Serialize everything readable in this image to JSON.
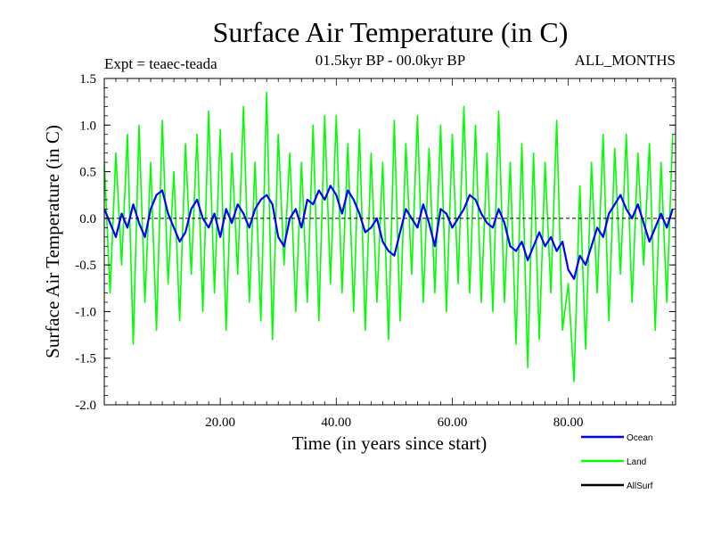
{
  "chart_data": {
    "type": "line",
    "title": "Surface Air Temperature (in C)",
    "subtitle": "01.5kyr BP - 00.0kyr BP",
    "experiment_label": "Expt = teaec-teada",
    "period_label": "ALL_MONTHS",
    "xlabel": "Time (in years since start)",
    "ylabel": "Surface Air Temperature (in C)",
    "xlim": [
      0,
      98.5
    ],
    "ylim": [
      -2.0,
      1.5
    ],
    "x_ticks": [
      20,
      40,
      60,
      80
    ],
    "x_tick_labels": [
      "20.00",
      "40.00",
      "60.00",
      "80.00"
    ],
    "y_ticks": [
      1.5,
      1.0,
      0.5,
      0.0,
      -0.5,
      -1.0,
      -1.5,
      -2.0
    ],
    "y_tick_labels": [
      "1.5",
      "1.0",
      "0.5",
      "0.0",
      "-0.5",
      "-1.0",
      "-1.5",
      "-2.0"
    ],
    "zero_line": true,
    "series": [
      {
        "name": "Ocean",
        "color": "#0000ff",
        "x": [
          0,
          1,
          2,
          3,
          4,
          5,
          6,
          7,
          8,
          9,
          10,
          11,
          12,
          13,
          14,
          15,
          16,
          17,
          18,
          19,
          20,
          21,
          22,
          23,
          24,
          25,
          26,
          27,
          28,
          29,
          30,
          31,
          32,
          33,
          34,
          35,
          36,
          37,
          38,
          39,
          40,
          41,
          42,
          43,
          44,
          45,
          46,
          47,
          48,
          49,
          50,
          51,
          52,
          53,
          54,
          55,
          56,
          57,
          58,
          59,
          60,
          61,
          62,
          63,
          64,
          65,
          66,
          67,
          68,
          69,
          70,
          71,
          72,
          73,
          74,
          75,
          76,
          77,
          78,
          79,
          80,
          81,
          82,
          83,
          84,
          85,
          86,
          87,
          88,
          89,
          90,
          91,
          92,
          93,
          94,
          95,
          96,
          97,
          98
        ],
        "values": [
          0.1,
          -0.05,
          -0.2,
          0.05,
          -0.1,
          0.15,
          -0.05,
          -0.2,
          0.1,
          0.25,
          0.3,
          0.05,
          -0.1,
          -0.25,
          -0.15,
          0.1,
          0.2,
          0.0,
          -0.1,
          0.05,
          -0.2,
          0.1,
          -0.05,
          0.15,
          0.05,
          -0.1,
          0.1,
          0.2,
          0.25,
          0.15,
          -0.2,
          -0.3,
          0.0,
          0.1,
          -0.1,
          0.2,
          0.15,
          0.3,
          0.2,
          0.35,
          0.25,
          0.05,
          0.3,
          0.2,
          0.05,
          -0.15,
          -0.1,
          0.0,
          -0.25,
          -0.35,
          -0.4,
          -0.15,
          0.1,
          0.0,
          -0.1,
          0.15,
          -0.05,
          -0.3,
          0.1,
          0.05,
          -0.1,
          0.0,
          0.1,
          0.25,
          0.2,
          0.05,
          -0.05,
          -0.1,
          0.1,
          -0.05,
          -0.3,
          -0.35,
          -0.25,
          -0.45,
          -0.3,
          -0.15,
          -0.3,
          -0.2,
          -0.35,
          -0.25,
          -0.55,
          -0.65,
          -0.4,
          -0.5,
          -0.3,
          -0.1,
          -0.2,
          0.05,
          0.15,
          0.25,
          0.1,
          0.0,
          0.15,
          -0.05,
          -0.25,
          -0.1,
          0.05,
          -0.1,
          0.1
        ]
      },
      {
        "name": "Land",
        "color": "#00ff00",
        "x": [
          0,
          1,
          2,
          3,
          4,
          5,
          6,
          7,
          8,
          9,
          10,
          11,
          12,
          13,
          14,
          15,
          16,
          17,
          18,
          19,
          20,
          21,
          22,
          23,
          24,
          25,
          26,
          27,
          28,
          29,
          30,
          31,
          32,
          33,
          34,
          35,
          36,
          37,
          38,
          39,
          40,
          41,
          42,
          43,
          44,
          45,
          46,
          47,
          48,
          49,
          50,
          51,
          52,
          53,
          54,
          55,
          56,
          57,
          58,
          59,
          60,
          61,
          62,
          63,
          64,
          65,
          66,
          67,
          68,
          69,
          70,
          71,
          72,
          73,
          74,
          75,
          76,
          77,
          78,
          79,
          80,
          81,
          82,
          83,
          84,
          85,
          86,
          87,
          88,
          89,
          90,
          91,
          92,
          93,
          94,
          95,
          96,
          97,
          98
        ],
        "values": [
          0.6,
          -0.8,
          0.7,
          -0.5,
          0.9,
          -1.35,
          1.0,
          -0.9,
          0.6,
          -1.2,
          1.05,
          -0.7,
          0.5,
          -1.1,
          0.8,
          -0.6,
          0.9,
          -1.0,
          1.15,
          -0.8,
          0.95,
          -1.2,
          0.7,
          -0.6,
          1.2,
          -0.9,
          0.6,
          -1.1,
          1.35,
          -1.3,
          0.9,
          -0.5,
          0.7,
          -1.0,
          0.6,
          -0.9,
          1.0,
          -1.1,
          1.1,
          -0.7,
          1.1,
          -0.8,
          0.8,
          -1.0,
          0.95,
          -1.2,
          0.7,
          -0.9,
          0.6,
          -1.3,
          1.05,
          -1.1,
          0.8,
          -0.6,
          1.1,
          -0.9,
          0.75,
          -0.8,
          1.0,
          -1.0,
          0.9,
          -0.7,
          1.2,
          -0.8,
          1.0,
          -0.9,
          0.7,
          -1.0,
          1.15,
          -0.9,
          0.6,
          -1.35,
          0.8,
          -1.6,
          0.7,
          -1.3,
          0.6,
          -0.8,
          1.05,
          -1.2,
          -0.7,
          -1.75,
          0.35,
          -1.4,
          0.6,
          -0.8,
          0.9,
          -1.1,
          0.75,
          -0.6,
          0.9,
          -0.9,
          0.7,
          -0.5,
          0.8,
          -1.2,
          0.6,
          -0.9,
          0.9
        ]
      },
      {
        "name": "AllSurf",
        "color": "#000000",
        "x": [],
        "values": []
      }
    ]
  }
}
